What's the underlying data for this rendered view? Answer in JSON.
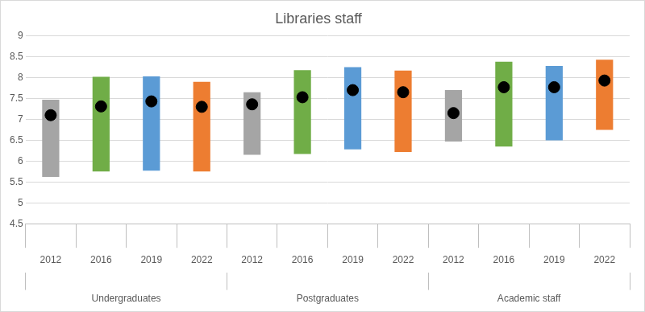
{
  "chart_data": {
    "type": "bar",
    "title": "Libraries staff",
    "groups": [
      {
        "name": "Undergraduates",
        "categories": [
          "2012",
          "2016",
          "2019",
          "2022"
        ],
        "colors": [
          "#a5a5a5",
          "#70ad47",
          "#5b9bd5",
          "#ed7d31"
        ],
        "low": [
          5.62,
          5.75,
          5.77,
          5.75
        ],
        "high": [
          7.47,
          8.02,
          8.03,
          7.9
        ],
        "mean": [
          7.1,
          7.31,
          7.43,
          7.3
        ]
      },
      {
        "name": "Postgraduates",
        "categories": [
          "2012",
          "2016",
          "2019",
          "2022"
        ],
        "colors": [
          "#a5a5a5",
          "#70ad47",
          "#5b9bd5",
          "#ed7d31"
        ],
        "low": [
          6.15,
          6.17,
          6.28,
          6.22
        ],
        "high": [
          7.65,
          8.18,
          8.25,
          8.17
        ],
        "mean": [
          7.36,
          7.53,
          7.7,
          7.65
        ]
      },
      {
        "name": "Academic staff",
        "categories": [
          "2012",
          "2016",
          "2019",
          "2022"
        ],
        "colors": [
          "#a5a5a5",
          "#70ad47",
          "#5b9bd5",
          "#ed7d31"
        ],
        "low": [
          6.47,
          6.35,
          6.5,
          6.75
        ],
        "high": [
          7.7,
          8.38,
          8.28,
          8.43
        ],
        "mean": [
          7.15,
          7.77,
          7.77,
          7.93
        ]
      }
    ],
    "marker": "circle",
    "ylim": [
      4.5,
      9
    ],
    "yticks": [
      4.5,
      5,
      5.5,
      6,
      6.5,
      7,
      7.5,
      8,
      8.5,
      9
    ],
    "grid": true
  }
}
